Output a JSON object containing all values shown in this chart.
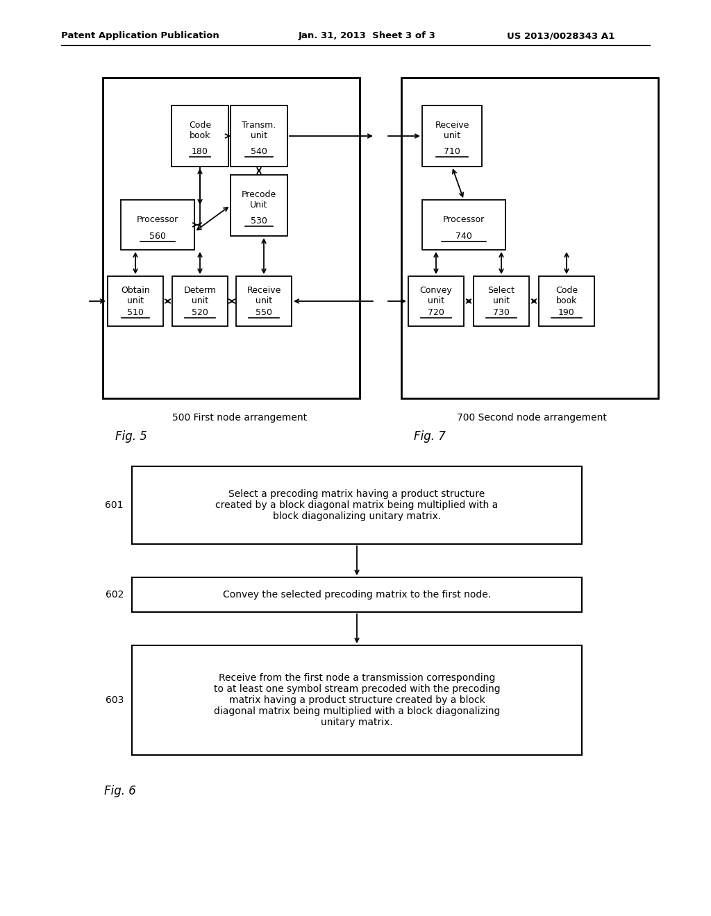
{
  "bg_color": "#ffffff",
  "header_left": "Patent Application Publication",
  "header_center": "Jan. 31, 2013  Sheet 3 of 3",
  "header_right": "US 2013/0028343 A1",
  "fig5_label": "Fig. 5",
  "fig5_caption": "500 First node arrangement",
  "fig7_label": "Fig. 7",
  "fig7_caption": "700 Second node arrangement",
  "fig6_label": "Fig. 6",
  "box601_label": "601",
  "box601_text": "Select a precoding matrix having a product structure\ncreated by a block diagonal matrix being multiplied with a\nblock diagonalizing unitary matrix.",
  "box602_label": "602",
  "box602_text": "Convey the selected precoding matrix to the first node.",
  "box603_label": "603",
  "box603_text": "Receive from the first node a transmission corresponding\nto at least one symbol stream precoded with the precoding\nmatrix having a product structure created by a block\ndiagonal matrix being multiplied with a block diagonalizing\nunitary matrix."
}
